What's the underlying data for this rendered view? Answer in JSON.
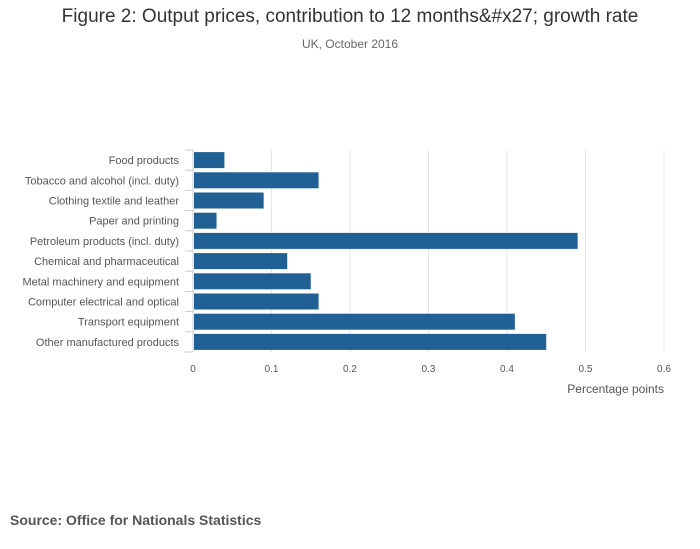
{
  "header": {
    "title": "Figure 2: Output prices, contribution to 12 months&#x27; growth rate",
    "subtitle": "UK, October 2016"
  },
  "footer": {
    "source": "Source: Office for Nationals Statistics"
  },
  "colors": {
    "bar": "#206095",
    "grid": "#e6e6e6",
    "axis": "#cccccc"
  },
  "chart_data": {
    "type": "bar",
    "orientation": "horizontal",
    "title": "Figure 2: Output prices, contribution to 12 months&#x27; growth rate",
    "subtitle": "UK, October 2016",
    "xlabel": "Percentage points",
    "ylabel": "",
    "xlim": [
      0,
      0.6
    ],
    "xticks": [
      0,
      0.1,
      0.2,
      0.3,
      0.4,
      0.5,
      0.6
    ],
    "xtick_labels": [
      "0",
      "0.1",
      "0.2",
      "0.3",
      "0.4",
      "0.5",
      "0.6"
    ],
    "grid": true,
    "legend": "none",
    "categories": [
      "Food products",
      "Tobacco and alcohol (incl. duty)",
      "Clothing textile and leather",
      "Paper and printing",
      "Petroleum products (incl. duty)",
      "Chemical and pharmaceutical",
      "Metal machinery and equipment",
      "Computer electrical and optical",
      "Transport equipment",
      "Other manufactured products"
    ],
    "values": [
      0.04,
      0.16,
      0.09,
      0.03,
      0.49,
      0.12,
      0.15,
      0.16,
      0.41,
      0.45
    ]
  }
}
